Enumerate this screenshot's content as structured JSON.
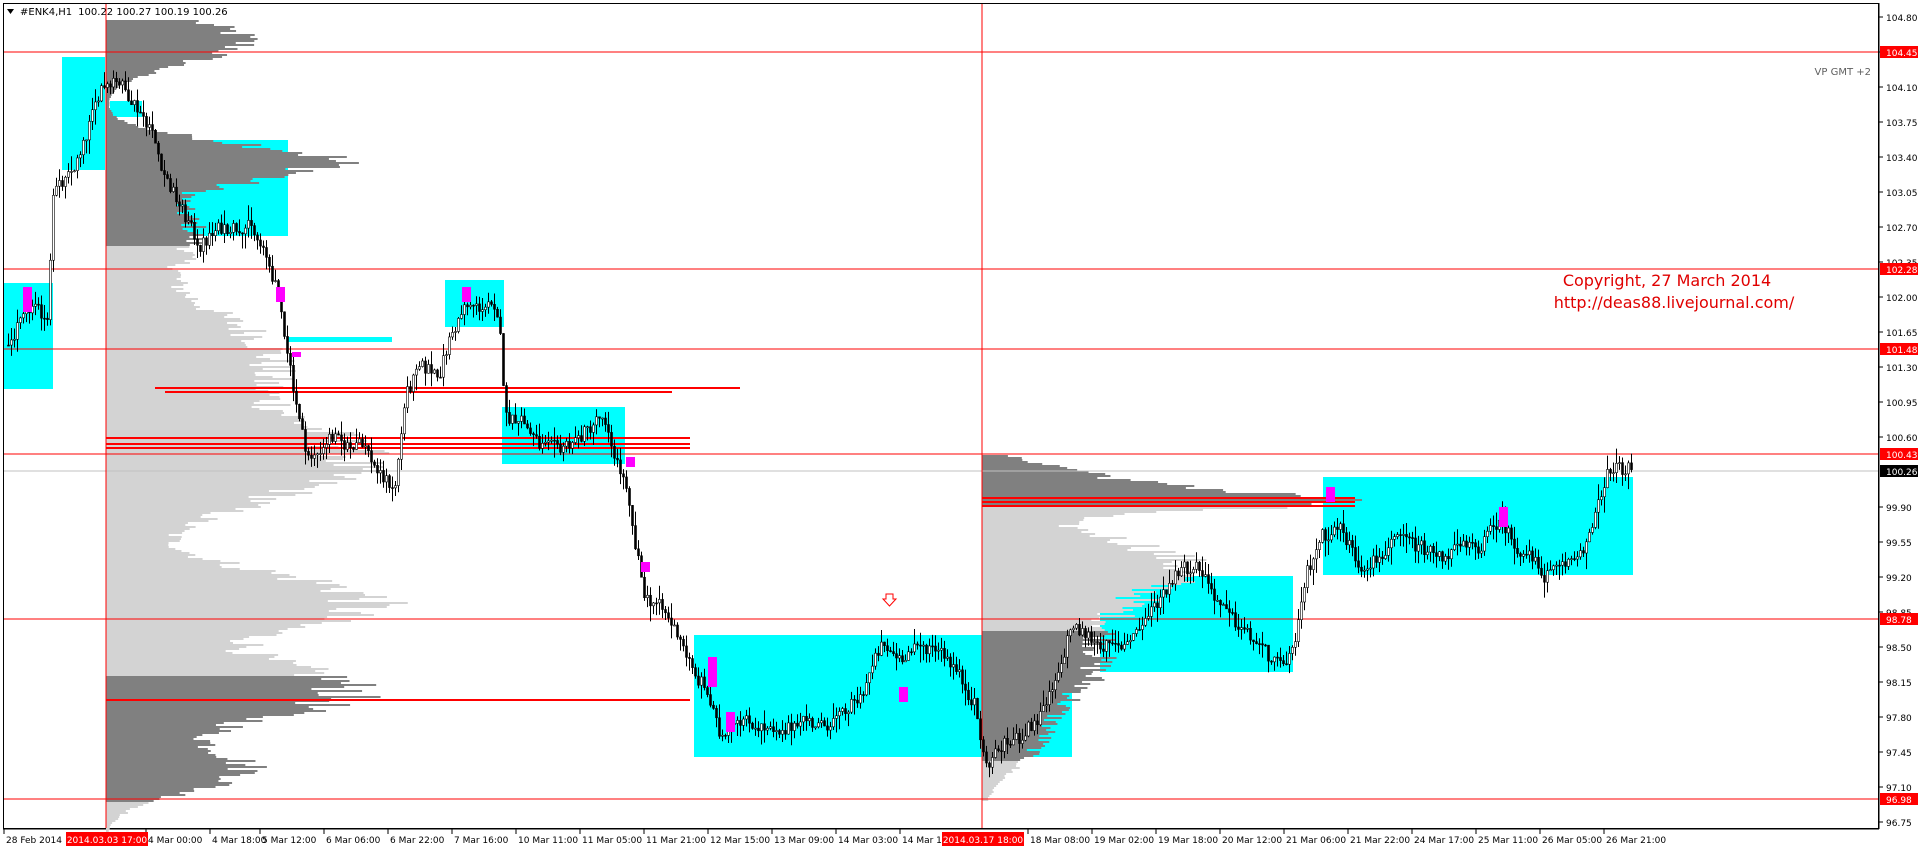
{
  "window": {
    "title": "#ENK4,H1",
    "ohlc": "100.22 100.27 100.19 100.26",
    "menu_icon": "triangle-down-icon"
  },
  "overlay": {
    "vp_label": "VP GMT +2",
    "copyright": "Copyright, 27 March 2014",
    "url": "http://deas88.livejournal.com/"
  },
  "colors": {
    "level_line": "#ff0000",
    "value_area": "#00ffff",
    "poc_candle": "#ff00ff",
    "profile_dark": "#808080",
    "profile_light": "#d3d3d3",
    "axis_bg": "#ffffff",
    "tag_bg": "#ff0000",
    "current_tag_bg": "#000000"
  },
  "chart_data": {
    "type": "candlestick",
    "symbol": "#ENK4",
    "timeframe": "H1",
    "y_ticks": [
      104.8,
      104.45,
      104.1,
      103.75,
      103.4,
      103.05,
      102.7,
      102.35,
      102.0,
      101.65,
      101.3,
      100.95,
      100.6,
      100.26,
      99.9,
      99.55,
      99.2,
      98.85,
      98.5,
      98.15,
      97.8,
      97.45,
      97.1,
      96.75
    ],
    "y_tick_labels": [
      "104.80",
      "104.45",
      "104.10",
      "103.75",
      "103.40",
      "103.05",
      "102.70",
      "102.35",
      "102.00",
      "101.65",
      "101.30",
      "100.95",
      "100.60",
      "100.26",
      "99.90",
      "99.55",
      "99.20",
      "98.85",
      "98.50",
      "98.15",
      "97.80",
      "97.45",
      "97.10",
      "96.75"
    ],
    "x_labels": [
      "28 Feb 2014",
      "4 Mar 00:00",
      "4 Mar 18:00",
      "5 Mar 12:00",
      "6 Mar 06:00",
      "6 Mar 22:00",
      "7 Mar 16:00",
      "10 Mar 11:00",
      "11 Mar 05:00",
      "11 Mar 21:00",
      "12 Mar 15:00",
      "13 Mar 09:00",
      "14 Mar 03:00",
      "14 Mar 19:",
      "18 Mar 08:00",
      "19 Mar 02:00",
      "19 Mar 18:00",
      "20 Mar 12:00",
      "21 Mar 06:00",
      "21 Mar 22:00",
      "24 Mar 17:00",
      "25 Mar 11:00",
      "26 Mar 05:00",
      "26 Mar 21:00"
    ],
    "vertical_lines": [
      {
        "label": "2014.03.03 17:00"
      },
      {
        "label": "2014.03.17 18:00"
      }
    ],
    "levels": [
      {
        "price": 104.45,
        "label": "104.45"
      },
      {
        "price": 102.28,
        "label": "102.28"
      },
      {
        "price": 101.48,
        "label": "101.48"
      },
      {
        "price": 100.43,
        "label": "100.43"
      },
      {
        "price": 98.78,
        "label": "98.78"
      },
      {
        "price": 96.98,
        "label": "96.98"
      }
    ],
    "current_price": {
      "price": 100.26,
      "label": "100.26"
    },
    "grid": false,
    "ylim": [
      96.65,
      104.95
    ]
  }
}
